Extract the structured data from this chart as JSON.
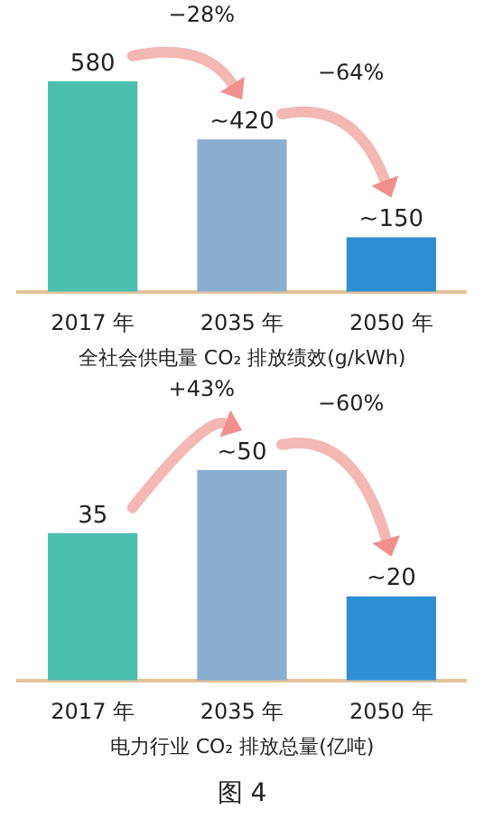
{
  "chart_data": [
    {
      "type": "bar",
      "categories": [
        "2017 年",
        "2035 年",
        "2050 年"
      ],
      "values": [
        580,
        420,
        150
      ],
      "colors": [
        "#4bbfb0",
        "#8aaed0",
        "#2d8fd2"
      ],
      "value_labels": [
        "580",
        "~420",
        "~150"
      ],
      "xlabel": "全社会供电量 CO₂ 排放绩效(g/kWh)",
      "annotations": [
        "−28%",
        "−64%"
      ]
    },
    {
      "type": "bar",
      "categories": [
        "2017 年",
        "2035 年",
        "2050 年"
      ],
      "values": [
        35,
        50,
        20
      ],
      "colors": [
        "#4bbfb0",
        "#8aaed0",
        "#2d8fd2"
      ],
      "value_labels": [
        "35",
        "~50",
        "~20"
      ],
      "xlabel": "电力行业 CO₂ 排放总量(亿吨)",
      "annotations": [
        "+43%",
        "−60%",
        "图 4"
      ]
    }
  ]
}
